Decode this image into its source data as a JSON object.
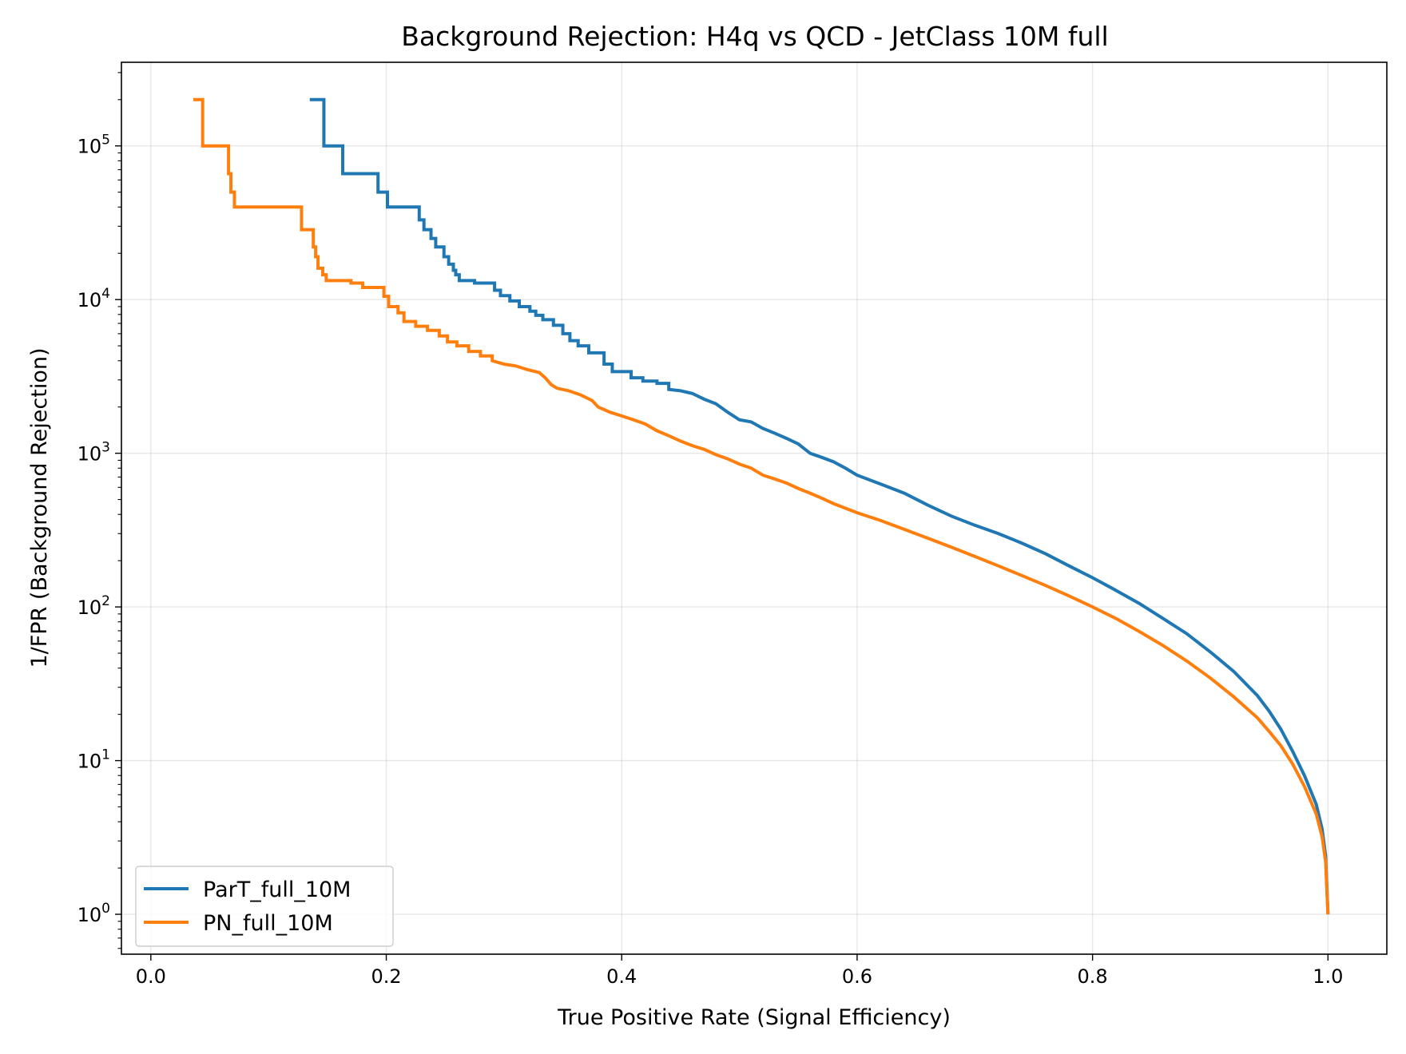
{
  "chart_data": {
    "type": "line",
    "title": "Background Rejection: H4q vs QCD - JetClass 10M full",
    "xlabel": "True Positive Rate (Signal Efficiency)",
    "ylabel": "1/FPR (Background Rejection)",
    "xlim": [
      -0.025,
      1.05
    ],
    "ylim": [
      0.55,
      350000
    ],
    "yscale": "log",
    "grid": true,
    "legend_position": "lower left",
    "xticks": [
      {
        "value": 0.0,
        "label": "0.0"
      },
      {
        "value": 0.2,
        "label": "0.2"
      },
      {
        "value": 0.4,
        "label": "0.4"
      },
      {
        "value": 0.6,
        "label": "0.6"
      },
      {
        "value": 0.8,
        "label": "0.8"
      },
      {
        "value": 1.0,
        "label": "1.0"
      }
    ],
    "yticks": [
      {
        "value": 1,
        "base": "10",
        "exp": "0"
      },
      {
        "value": 10,
        "base": "10",
        "exp": "1"
      },
      {
        "value": 100,
        "base": "10",
        "exp": "2"
      },
      {
        "value": 1000,
        "base": "10",
        "exp": "3"
      },
      {
        "value": 10000,
        "base": "10",
        "exp": "4"
      },
      {
        "value": 100000,
        "base": "10",
        "exp": "5"
      }
    ],
    "series": [
      {
        "name": "ParT_full_10M",
        "color": "#1f77b4",
        "step": true,
        "points": [
          [
            0.135,
            200000
          ],
          [
            0.147,
            200000
          ],
          [
            0.147,
            100000
          ],
          [
            0.163,
            100000
          ],
          [
            0.163,
            66000
          ],
          [
            0.193,
            66000
          ],
          [
            0.193,
            50000
          ],
          [
            0.201,
            50000
          ],
          [
            0.201,
            40000
          ],
          [
            0.228,
            40000
          ],
          [
            0.228,
            33000
          ],
          [
            0.232,
            33000
          ],
          [
            0.232,
            28500
          ],
          [
            0.238,
            28500
          ],
          [
            0.238,
            25000
          ],
          [
            0.242,
            25000
          ],
          [
            0.242,
            22000
          ],
          [
            0.249,
            22000
          ],
          [
            0.249,
            19000
          ],
          [
            0.253,
            19000
          ],
          [
            0.253,
            17000
          ],
          [
            0.257,
            17000
          ],
          [
            0.257,
            15500
          ],
          [
            0.259,
            15500
          ],
          [
            0.259,
            14500
          ],
          [
            0.262,
            14500
          ],
          [
            0.262,
            13300
          ],
          [
            0.275,
            13300
          ],
          [
            0.275,
            12800
          ],
          [
            0.292,
            12800
          ],
          [
            0.292,
            11500
          ],
          [
            0.297,
            11500
          ],
          [
            0.297,
            10600
          ],
          [
            0.305,
            10600
          ],
          [
            0.305,
            9800
          ],
          [
            0.313,
            9800
          ],
          [
            0.313,
            9000
          ],
          [
            0.322,
            9000
          ],
          [
            0.322,
            8400
          ],
          [
            0.327,
            8400
          ],
          [
            0.327,
            7900
          ],
          [
            0.333,
            7900
          ],
          [
            0.333,
            7400
          ],
          [
            0.342,
            7400
          ],
          [
            0.342,
            6800
          ],
          [
            0.35,
            6800
          ],
          [
            0.35,
            6000
          ],
          [
            0.356,
            6000
          ],
          [
            0.356,
            5400
          ],
          [
            0.363,
            5400
          ],
          [
            0.363,
            5000
          ],
          [
            0.372,
            5000
          ],
          [
            0.372,
            4500
          ],
          [
            0.385,
            4500
          ],
          [
            0.385,
            3800
          ],
          [
            0.392,
            3800
          ],
          [
            0.392,
            3400
          ],
          [
            0.408,
            3400
          ],
          [
            0.408,
            3100
          ],
          [
            0.418,
            3100
          ],
          [
            0.418,
            2950
          ],
          [
            0.43,
            2950
          ],
          [
            0.43,
            2850
          ],
          [
            0.44,
            2850
          ],
          [
            0.44,
            2600
          ],
          [
            0.45,
            2550
          ],
          [
            0.46,
            2450
          ],
          [
            0.47,
            2250
          ],
          [
            0.48,
            2100
          ],
          [
            0.49,
            1850
          ],
          [
            0.5,
            1650
          ],
          [
            0.51,
            1600
          ],
          [
            0.52,
            1450
          ],
          [
            0.53,
            1350
          ],
          [
            0.54,
            1250
          ],
          [
            0.55,
            1150
          ],
          [
            0.56,
            1000
          ],
          [
            0.57,
            940
          ],
          [
            0.58,
            880
          ],
          [
            0.59,
            800
          ],
          [
            0.6,
            720
          ],
          [
            0.62,
            630
          ],
          [
            0.64,
            550
          ],
          [
            0.66,
            460
          ],
          [
            0.68,
            390
          ],
          [
            0.7,
            340
          ],
          [
            0.72,
            300
          ],
          [
            0.74,
            260
          ],
          [
            0.76,
            222
          ],
          [
            0.78,
            185
          ],
          [
            0.8,
            155
          ],
          [
            0.82,
            128
          ],
          [
            0.84,
            105
          ],
          [
            0.86,
            84
          ],
          [
            0.88,
            67
          ],
          [
            0.9,
            51
          ],
          [
            0.92,
            38
          ],
          [
            0.94,
            26.5
          ],
          [
            0.95,
            21
          ],
          [
            0.96,
            16
          ],
          [
            0.97,
            11.5
          ],
          [
            0.98,
            8
          ],
          [
            0.99,
            5.2
          ],
          [
            0.995,
            3.6
          ],
          [
            0.998,
            2.4
          ],
          [
            1.0,
            1
          ]
        ]
      },
      {
        "name": "PN_full_10M",
        "color": "#ff7f0e",
        "step": true,
        "points": [
          [
            0.036,
            200000
          ],
          [
            0.044,
            200000
          ],
          [
            0.044,
            100000
          ],
          [
            0.066,
            100000
          ],
          [
            0.066,
            66000
          ],
          [
            0.068,
            66000
          ],
          [
            0.068,
            50000
          ],
          [
            0.071,
            50000
          ],
          [
            0.071,
            40000
          ],
          [
            0.128,
            40000
          ],
          [
            0.128,
            28500
          ],
          [
            0.138,
            28500
          ],
          [
            0.138,
            22000
          ],
          [
            0.14,
            22000
          ],
          [
            0.14,
            19000
          ],
          [
            0.142,
            19000
          ],
          [
            0.142,
            16000
          ],
          [
            0.146,
            16000
          ],
          [
            0.146,
            14500
          ],
          [
            0.149,
            14500
          ],
          [
            0.149,
            13300
          ],
          [
            0.17,
            13300
          ],
          [
            0.17,
            12800
          ],
          [
            0.18,
            12800
          ],
          [
            0.18,
            12000
          ],
          [
            0.198,
            12000
          ],
          [
            0.198,
            10500
          ],
          [
            0.202,
            10500
          ],
          [
            0.202,
            9000
          ],
          [
            0.21,
            9000
          ],
          [
            0.21,
            8200
          ],
          [
            0.215,
            8200
          ],
          [
            0.215,
            7200
          ],
          [
            0.225,
            7200
          ],
          [
            0.225,
            6700
          ],
          [
            0.235,
            6700
          ],
          [
            0.235,
            6300
          ],
          [
            0.245,
            6300
          ],
          [
            0.245,
            5800
          ],
          [
            0.252,
            5800
          ],
          [
            0.252,
            5300
          ],
          [
            0.26,
            5300
          ],
          [
            0.26,
            5000
          ],
          [
            0.27,
            5000
          ],
          [
            0.27,
            4600
          ],
          [
            0.28,
            4600
          ],
          [
            0.28,
            4300
          ],
          [
            0.29,
            4300
          ],
          [
            0.29,
            4000
          ],
          [
            0.3,
            3800
          ],
          [
            0.31,
            3700
          ],
          [
            0.32,
            3500
          ],
          [
            0.33,
            3350
          ],
          [
            0.335,
            3100
          ],
          [
            0.34,
            2800
          ],
          [
            0.345,
            2650
          ],
          [
            0.355,
            2550
          ],
          [
            0.365,
            2400
          ],
          [
            0.375,
            2200
          ],
          [
            0.38,
            2000
          ],
          [
            0.39,
            1850
          ],
          [
            0.4,
            1750
          ],
          [
            0.41,
            1650
          ],
          [
            0.42,
            1550
          ],
          [
            0.43,
            1400
          ],
          [
            0.44,
            1300
          ],
          [
            0.45,
            1200
          ],
          [
            0.46,
            1120
          ],
          [
            0.47,
            1060
          ],
          [
            0.48,
            980
          ],
          [
            0.49,
            920
          ],
          [
            0.5,
            850
          ],
          [
            0.51,
            800
          ],
          [
            0.52,
            720
          ],
          [
            0.53,
            680
          ],
          [
            0.54,
            640
          ],
          [
            0.55,
            590
          ],
          [
            0.56,
            550
          ],
          [
            0.57,
            510
          ],
          [
            0.58,
            470
          ],
          [
            0.6,
            410
          ],
          [
            0.62,
            365
          ],
          [
            0.64,
            320
          ],
          [
            0.66,
            280
          ],
          [
            0.68,
            245
          ],
          [
            0.7,
            213
          ],
          [
            0.72,
            185
          ],
          [
            0.74,
            160
          ],
          [
            0.76,
            138
          ],
          [
            0.78,
            118
          ],
          [
            0.8,
            100
          ],
          [
            0.82,
            84
          ],
          [
            0.84,
            69
          ],
          [
            0.86,
            56
          ],
          [
            0.88,
            44.5
          ],
          [
            0.9,
            34.5
          ],
          [
            0.92,
            26
          ],
          [
            0.94,
            19
          ],
          [
            0.95,
            15.5
          ],
          [
            0.96,
            12.5
          ],
          [
            0.97,
            9.5
          ],
          [
            0.98,
            6.8
          ],
          [
            0.99,
            4.5
          ],
          [
            0.995,
            3.2
          ],
          [
            0.998,
            2.2
          ],
          [
            1.0,
            1
          ]
        ]
      }
    ]
  }
}
